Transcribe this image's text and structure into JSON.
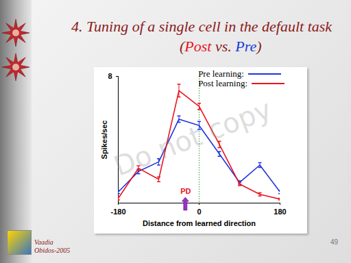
{
  "slide": {
    "title": "4. Tuning of a single cell in the default task",
    "subtitle": [
      {
        "text": "(",
        "color": "#8b1a1a"
      },
      {
        "text": "Post",
        "color": "#e8141e"
      },
      {
        "text": " vs. ",
        "color": "#8b1a1a"
      },
      {
        "text": "Pre",
        "color": "#1a3cd8"
      },
      {
        "text": ")",
        "color": "#8b1a1a"
      }
    ],
    "watermark": "Do not copy",
    "footer": [
      "Vaadia",
      "Obidos-2005"
    ],
    "page_number": "49"
  },
  "chart_data": {
    "type": "line",
    "x": [
      -180,
      -135,
      -90,
      -45,
      0,
      45,
      90,
      135,
      180
    ],
    "series": [
      {
        "name": "Pre learning:",
        "color": "#2233dd",
        "values": [
          0.7,
          2.0,
          2.6,
          5.3,
          4.9,
          3.1,
          1.3,
          2.4,
          0.7
        ],
        "errors": [
          0.1,
          0.15,
          0.2,
          0.2,
          0.25,
          0.15,
          0.1,
          0.15,
          0.1
        ]
      },
      {
        "name": "Post learning:",
        "color": "#e8141e",
        "values": [
          0.3,
          2.2,
          1.5,
          7.1,
          6.1,
          3.7,
          1.2,
          0.55,
          0.25
        ],
        "errors": [
          0.1,
          0.15,
          0.15,
          0.4,
          0.2,
          0.2,
          0.1,
          0.1,
          0.05
        ]
      }
    ],
    "xlabel": "Distance from learned direction",
    "ylabel": "Spikes/sec",
    "xlim": [
      -180,
      180
    ],
    "ylim": [
      0,
      8
    ],
    "xticks": [
      -180,
      0,
      180
    ],
    "yticks": [
      8
    ],
    "legend": "top-right",
    "annotations": [
      {
        "text": "PD",
        "x": -30
      }
    ],
    "reference_line": {
      "x": 0,
      "color": "#22aa22",
      "line_style": "dotted"
    }
  }
}
